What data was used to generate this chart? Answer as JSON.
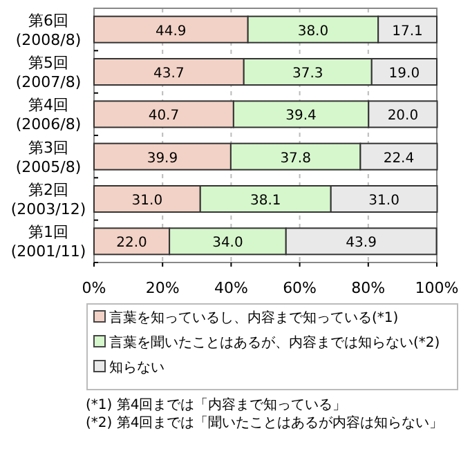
{
  "chart_data": {
    "type": "bar",
    "orientation": "horizontal",
    "stacked": true,
    "categories": [
      "第6回(2008/8)",
      "第5回(2007/8)",
      "第4回(2006/8)",
      "第3回(2005/8)",
      "第2回(2003/12)",
      "第1回(2001/11)"
    ],
    "series": [
      {
        "name": "言葉を知っているし、内容まで知っている(*1)",
        "color": "#f2d2c6",
        "values": [
          44.9,
          43.7,
          40.7,
          39.9,
          31.0,
          22.0
        ],
        "value_labels": [
          "44.9",
          "43.7",
          "40.7",
          "39.9",
          "31.0",
          "22.0"
        ]
      },
      {
        "name": "言葉を聞いたことはあるが、内容までは知らない(*2)",
        "color": "#d6f6cc",
        "values": [
          38.0,
          37.3,
          39.4,
          37.8,
          38.1,
          34.0
        ],
        "value_labels": [
          "38.0",
          "37.3",
          "39.4",
          "37.8",
          "38.1",
          "34.0"
        ]
      },
      {
        "name": "知らない",
        "color": "#e9e9e9",
        "values": [
          17.1,
          19.0,
          20.0,
          22.4,
          31.0,
          43.9
        ],
        "value_labels": [
          "17.1",
          "19.0",
          "20.0",
          "22.4",
          "31.0",
          "43.9"
        ]
      }
    ],
    "xlim": [
      0,
      100
    ],
    "xticks": [
      {
        "value": 0,
        "label": "0%"
      },
      {
        "value": 20,
        "label": "20%"
      },
      {
        "value": 40,
        "label": "40%"
      },
      {
        "value": 60,
        "label": "60%"
      },
      {
        "value": 80,
        "label": "80%"
      },
      {
        "value": 100,
        "label": "100%"
      }
    ],
    "grid": "x",
    "legend": "bottom",
    "annotations": [
      "(*1) 第4回までは「内容まで知っている」",
      "(*2) 第4回までは「聞いたことはあるが内容は知らない」"
    ]
  }
}
